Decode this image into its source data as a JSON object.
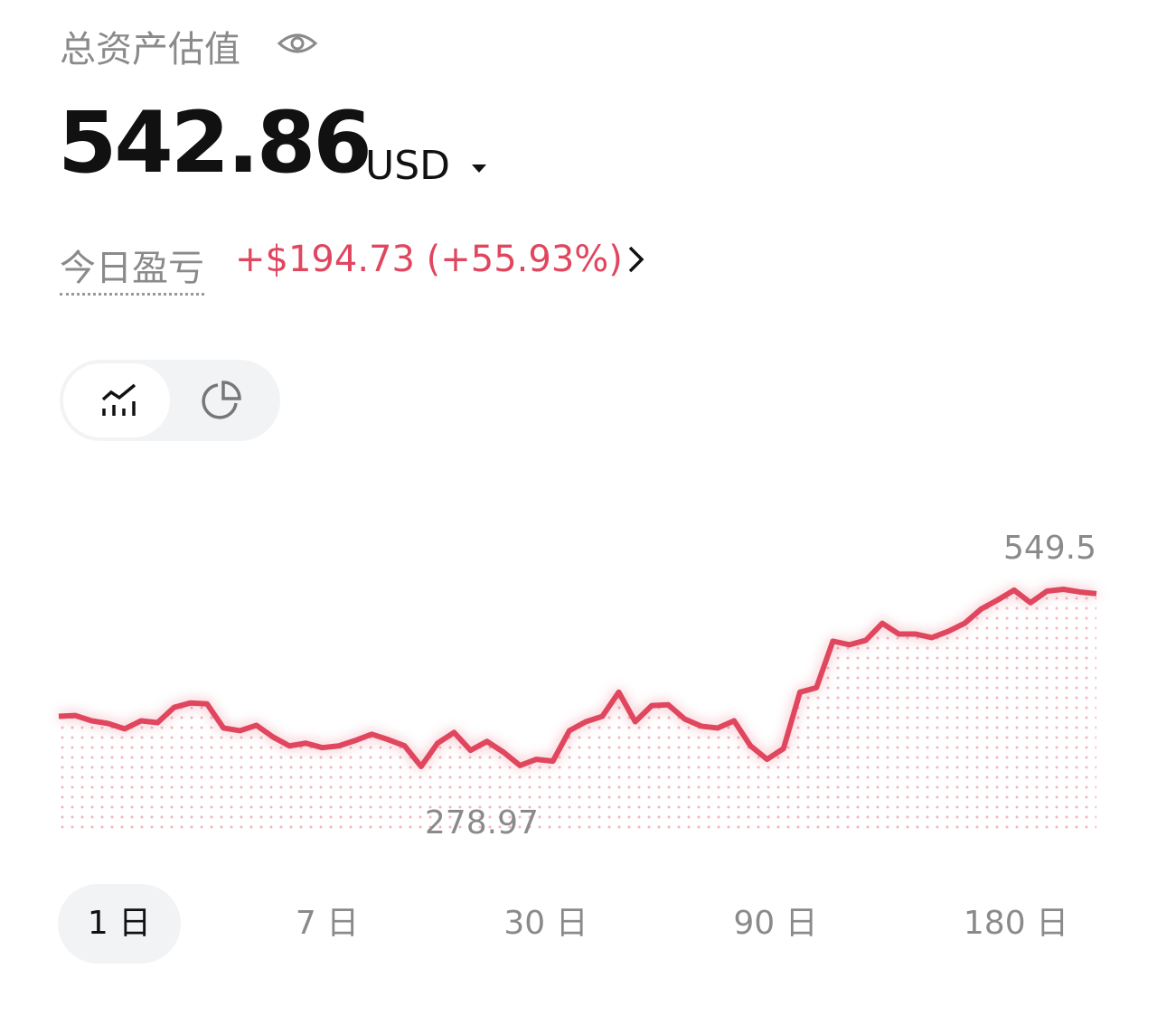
{
  "header": {
    "title": "总资产估值",
    "balance": "542.86",
    "currency": "USD",
    "pnl_label": "今日盈亏",
    "pnl_amount": "+$194.73",
    "pnl_percent": "(+55.93%)"
  },
  "chart_data": {
    "type": "line",
    "color": "#e0465e",
    "high_label": 549.5,
    "low_label": 278.97,
    "series": [
      {
        "values": [
          355.5,
          356.8,
          348.7,
          344.6,
          336.4,
          348.7,
          345.9,
          369.1,
          376.0,
          374.6,
          337.7,
          333.6,
          341.8,
          324.1,
          310.4,
          314.5,
          307.7,
          310.4,
          318.6,
          328.2,
          320.0,
          310.4,
          278.97,
          314.5,
          330.9,
          303.6,
          317.2,
          300.8,
          280.5,
          289.9,
          287.1,
          333.6,
          347.3,
          355.5,
          392.4,
          347.3,
          371.9,
          373.2,
          351.4,
          340.5,
          337.7,
          348.7,
          310.4,
          289.9,
          306.3,
          392.4,
          399.2,
          470.3,
          464.8,
          471.6,
          497.6,
          481.2,
          481.2,
          475.7,
          485.3,
          497.6,
          519.4,
          533.1,
          548.2,
          529.0,
          546.8,
          549.5,
          545.4,
          542.86
        ]
      }
    ]
  },
  "range_tabs": [
    "1 日",
    "7 日",
    "30 日",
    "90 日",
    "180 日"
  ]
}
